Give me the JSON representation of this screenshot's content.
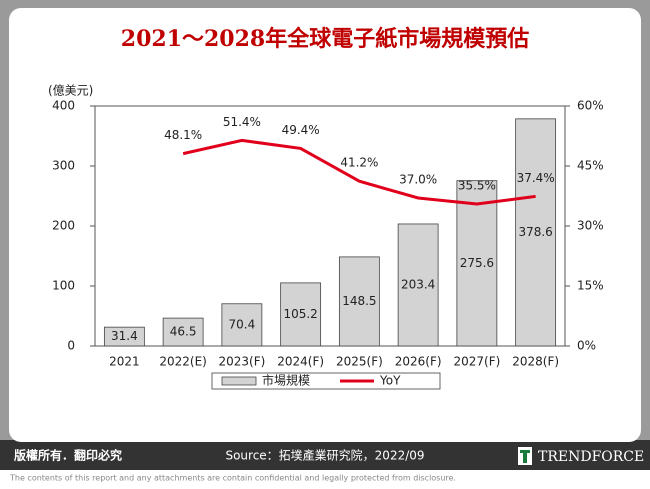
{
  "chart_data": {
    "type": "bar",
    "title": "2021～2028年全球電子紙市場規模預估",
    "y_label": "(億美元)",
    "categories": [
      "2021",
      "2022(E)",
      "2023(F)",
      "2024(F)",
      "2025(F)",
      "2026(F)",
      "2027(F)",
      "2028(F)"
    ],
    "series": [
      {
        "name": "市場規模",
        "type": "bar",
        "color": "#d3d3d3",
        "values": [
          31.4,
          46.5,
          70.4,
          105.2,
          148.5,
          203.4,
          275.6,
          378.6
        ]
      },
      {
        "name": "YoY",
        "type": "line",
        "axis": "y2",
        "color": "#e0001b",
        "values": [
          null,
          48.1,
          51.4,
          49.4,
          41.2,
          37.0,
          35.5,
          37.4
        ],
        "value_labels": [
          null,
          "48.1%",
          "51.4%",
          "49.4%",
          "41.2%",
          "37.0%",
          "35.5%",
          "37.4%"
        ]
      }
    ],
    "ylim": [
      0,
      400
    ],
    "yticks": [
      0,
      100,
      200,
      300,
      400
    ],
    "y2lim": [
      0,
      60
    ],
    "y2ticks": [
      {
        "value": 0,
        "label": "0%"
      },
      {
        "value": 15,
        "label": "15%"
      },
      {
        "value": 30,
        "label": "30%"
      },
      {
        "value": 45,
        "label": "45%"
      },
      {
        "value": 60,
        "label": "60%"
      }
    ],
    "grid": false,
    "legend": "bottom"
  },
  "footer": {
    "copyright": "版權所有．翻印必究",
    "source": "Source：拓墣產業研究院，2022/09",
    "brand": "TRENDFORCE",
    "disclaimer": "The contents of this report and any attachments are contain confidential and legally protected from disclosure."
  }
}
